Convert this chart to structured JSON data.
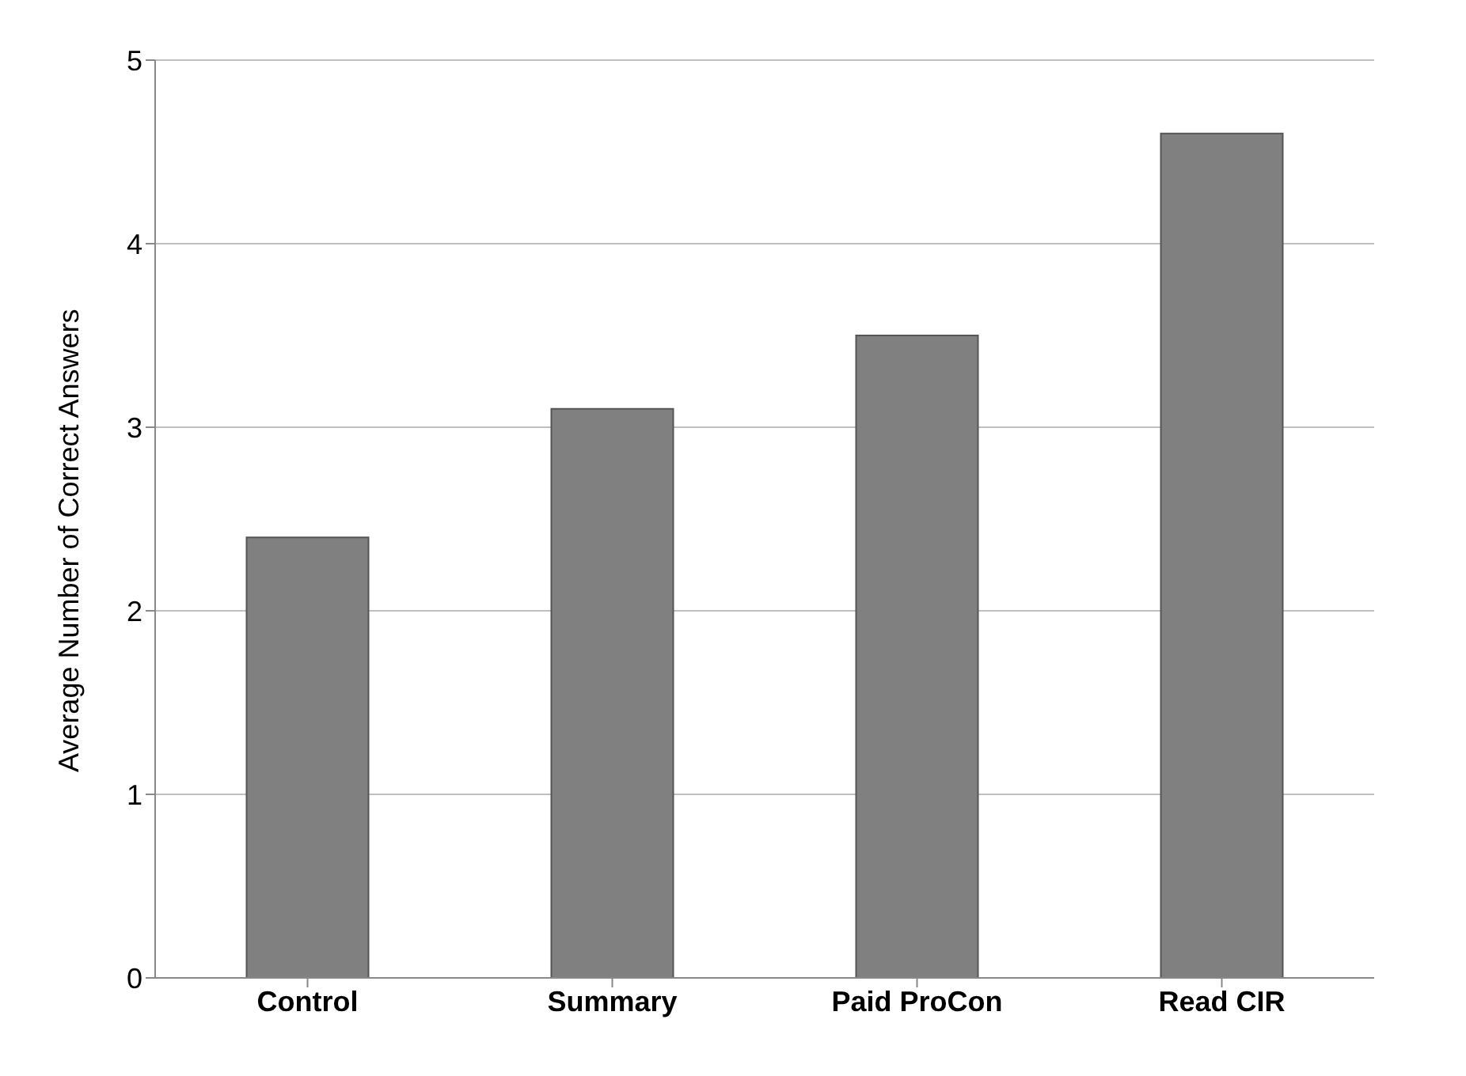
{
  "chart_data": {
    "type": "bar",
    "ylabel": "Average Number of Correct Answers",
    "categories": [
      "Control",
      "Summary",
      "Paid ProCon",
      "Read CIR"
    ],
    "values": [
      2.4,
      3.1,
      3.5,
      4.6
    ],
    "color": "#808080",
    "ylim": [
      0,
      5
    ],
    "yticks": [
      0,
      1,
      2,
      3,
      4,
      5
    ],
    "grid": "y"
  }
}
